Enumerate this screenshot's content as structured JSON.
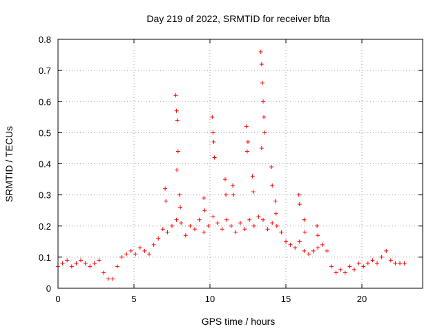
{
  "chart_data": {
    "type": "scatter",
    "title": "Day 219 of 2022, SRMTID for receiver bfta",
    "xlabel": "GPS time / hours",
    "ylabel": "SRMTID / TECUs",
    "xlim": [
      0,
      24
    ],
    "ylim": [
      0,
      0.8
    ],
    "xticks": [
      0,
      5,
      10,
      15,
      20
    ],
    "xtick_labels": [
      "0",
      "5",
      "10",
      "15",
      "20"
    ],
    "yticks": [
      0,
      0.1,
      0.2,
      0.3,
      0.4,
      0.5,
      0.6,
      0.7,
      0.8
    ],
    "ytick_labels": [
      "0",
      "0.1",
      "0.2",
      "0.3",
      "0.4",
      "0.5",
      "0.6",
      "0.7",
      "0.8"
    ],
    "grid": true,
    "marker": "+",
    "series": [
      {
        "name": "SRMTID",
        "color": "#ff0000",
        "x": [
          0.0,
          0.3,
          0.6,
          0.9,
          1.2,
          1.5,
          1.8,
          2.1,
          2.4,
          2.7,
          3.0,
          3.3,
          3.6,
          3.9,
          4.2,
          4.5,
          4.8,
          5.1,
          5.4,
          5.7,
          6.0,
          6.3,
          6.6,
          6.9,
          7.2,
          7.5,
          7.8,
          8.1,
          8.4,
          8.7,
          9.0,
          9.3,
          9.6,
          9.9,
          10.2,
          10.5,
          10.8,
          11.1,
          11.4,
          11.7,
          12.0,
          12.3,
          12.6,
          12.9,
          13.2,
          13.5,
          13.8,
          14.1,
          14.4,
          14.7,
          15.0,
          15.3,
          15.6,
          15.9,
          16.2,
          16.5,
          16.8,
          17.1,
          17.4,
          17.7,
          18.0,
          18.3,
          18.6,
          18.9,
          19.2,
          19.5,
          19.8,
          20.1,
          20.4,
          20.7,
          21.0,
          21.3,
          21.6,
          21.9,
          22.2,
          22.5,
          22.8,
          7.75,
          7.8,
          7.85,
          7.9,
          7.82,
          10.15,
          10.2,
          10.25,
          10.3,
          12.4,
          12.5,
          12.45,
          13.35,
          13.4,
          13.45,
          13.5,
          13.55,
          13.6,
          13.4,
          14.05,
          14.1,
          15.85,
          15.9,
          7.05,
          7.1,
          11.5,
          11.55,
          11.0,
          11.05,
          12.8,
          12.85,
          14.3,
          14.35,
          9.6,
          9.65,
          8.0,
          8.05,
          16.2,
          16.25,
          17.05,
          17.1
        ],
        "y": [
          0.07,
          0.08,
          0.09,
          0.07,
          0.08,
          0.09,
          0.08,
          0.07,
          0.08,
          0.09,
          0.05,
          0.03,
          0.03,
          0.07,
          0.1,
          0.11,
          0.12,
          0.11,
          0.13,
          0.12,
          0.11,
          0.14,
          0.16,
          0.19,
          0.18,
          0.2,
          0.22,
          0.21,
          0.17,
          0.2,
          0.19,
          0.22,
          0.18,
          0.2,
          0.23,
          0.21,
          0.19,
          0.22,
          0.2,
          0.18,
          0.21,
          0.19,
          0.22,
          0.2,
          0.23,
          0.22,
          0.19,
          0.21,
          0.2,
          0.18,
          0.15,
          0.14,
          0.13,
          0.15,
          0.12,
          0.11,
          0.12,
          0.13,
          0.14,
          0.12,
          0.07,
          0.05,
          0.06,
          0.05,
          0.07,
          0.06,
          0.08,
          0.07,
          0.08,
          0.09,
          0.08,
          0.1,
          0.12,
          0.09,
          0.08,
          0.08,
          0.08,
          0.62,
          0.57,
          0.54,
          0.44,
          0.38,
          0.55,
          0.5,
          0.47,
          0.42,
          0.52,
          0.47,
          0.44,
          0.76,
          0.72,
          0.66,
          0.6,
          0.55,
          0.5,
          0.45,
          0.39,
          0.33,
          0.3,
          0.27,
          0.32,
          0.28,
          0.33,
          0.3,
          0.35,
          0.3,
          0.36,
          0.31,
          0.28,
          0.24,
          0.29,
          0.25,
          0.3,
          0.26,
          0.22,
          0.18,
          0.2,
          0.17
        ]
      }
    ]
  }
}
